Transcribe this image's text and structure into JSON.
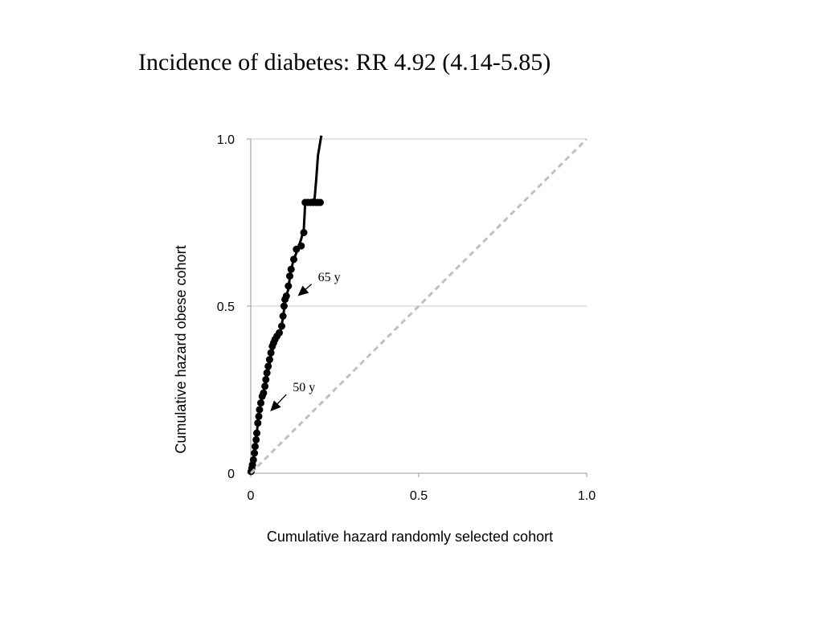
{
  "chart_data": {
    "type": "line",
    "title": "Incidence of diabetes: RR 4.92 (4.14-5.85)",
    "xlabel": "Cumulative hazard randomly selected cohort",
    "ylabel": "Cumulative hazard obese cohort",
    "xlim": [
      0,
      1.0
    ],
    "ylim": [
      0,
      1.0
    ],
    "x_ticks": [
      {
        "value": 0,
        "label": "0"
      },
      {
        "value": 0.5,
        "label": "0.5"
      },
      {
        "value": 1.0,
        "label": "1.0"
      }
    ],
    "y_ticks": [
      {
        "value": 0,
        "label": "0"
      },
      {
        "value": 0.5,
        "label": "0.5"
      },
      {
        "value": 1.0,
        "label": "1.0"
      }
    ],
    "grid": {
      "horizontal": true,
      "vertical": false
    },
    "series": [
      {
        "style": "solid",
        "color": "#000000",
        "points": [
          [
            0.0,
            0.0
          ],
          [
            0.003,
            0.01
          ],
          [
            0.006,
            0.03
          ],
          [
            0.01,
            0.06
          ],
          [
            0.015,
            0.1
          ],
          [
            0.02,
            0.14
          ],
          [
            0.025,
            0.18
          ],
          [
            0.032,
            0.22
          ],
          [
            0.04,
            0.25
          ],
          [
            0.046,
            0.28
          ],
          [
            0.053,
            0.31
          ],
          [
            0.06,
            0.35
          ],
          [
            0.068,
            0.38
          ],
          [
            0.078,
            0.41
          ],
          [
            0.09,
            0.43
          ],
          [
            0.098,
            0.48
          ],
          [
            0.102,
            0.52
          ],
          [
            0.112,
            0.55
          ],
          [
            0.118,
            0.6
          ],
          [
            0.128,
            0.64
          ],
          [
            0.14,
            0.67
          ],
          [
            0.15,
            0.7
          ],
          [
            0.158,
            0.73
          ],
          [
            0.16,
            0.77
          ],
          [
            0.162,
            0.81
          ],
          [
            0.175,
            0.815
          ],
          [
            0.19,
            0.82
          ],
          [
            0.195,
            0.88
          ],
          [
            0.2,
            0.95
          ],
          [
            0.21,
            1.01
          ]
        ],
        "marker_points": [
          [
            0.001,
            0.005
          ],
          [
            0.003,
            0.015
          ],
          [
            0.005,
            0.025
          ],
          [
            0.008,
            0.04
          ],
          [
            0.011,
            0.06
          ],
          [
            0.013,
            0.08
          ],
          [
            0.016,
            0.1
          ],
          [
            0.018,
            0.12
          ],
          [
            0.021,
            0.15
          ],
          [
            0.024,
            0.17
          ],
          [
            0.026,
            0.19
          ],
          [
            0.03,
            0.21
          ],
          [
            0.034,
            0.23
          ],
          [
            0.038,
            0.24
          ],
          [
            0.042,
            0.26
          ],
          [
            0.045,
            0.28
          ],
          [
            0.048,
            0.3
          ],
          [
            0.052,
            0.32
          ],
          [
            0.056,
            0.34
          ],
          [
            0.06,
            0.36
          ],
          [
            0.064,
            0.38
          ],
          [
            0.068,
            0.39
          ],
          [
            0.072,
            0.4
          ],
          [
            0.078,
            0.41
          ],
          [
            0.085,
            0.42
          ],
          [
            0.092,
            0.44
          ],
          [
            0.096,
            0.47
          ],
          [
            0.099,
            0.5
          ],
          [
            0.102,
            0.52
          ],
          [
            0.106,
            0.53
          ],
          [
            0.112,
            0.56
          ],
          [
            0.116,
            0.59
          ],
          [
            0.12,
            0.61
          ],
          [
            0.128,
            0.64
          ],
          [
            0.136,
            0.67
          ],
          [
            0.15,
            0.68
          ],
          [
            0.158,
            0.72
          ],
          [
            0.162,
            0.81
          ],
          [
            0.17,
            0.81
          ],
          [
            0.178,
            0.81
          ],
          [
            0.186,
            0.81
          ],
          [
            0.194,
            0.81
          ],
          [
            0.2,
            0.81
          ],
          [
            0.207,
            0.81
          ]
        ]
      },
      {
        "style": "dashed",
        "color": "#c0c0c0",
        "points": [
          [
            0.0,
            0.0
          ],
          [
            1.0,
            1.0
          ]
        ]
      }
    ],
    "annotations": [
      {
        "text": "65 y",
        "arrow_to": [
          0.14,
          0.53
        ],
        "text_at": [
          0.2,
          0.575
        ]
      },
      {
        "text": "50 y",
        "arrow_to": [
          0.058,
          0.185
        ],
        "text_at": [
          0.125,
          0.245
        ]
      }
    ]
  }
}
